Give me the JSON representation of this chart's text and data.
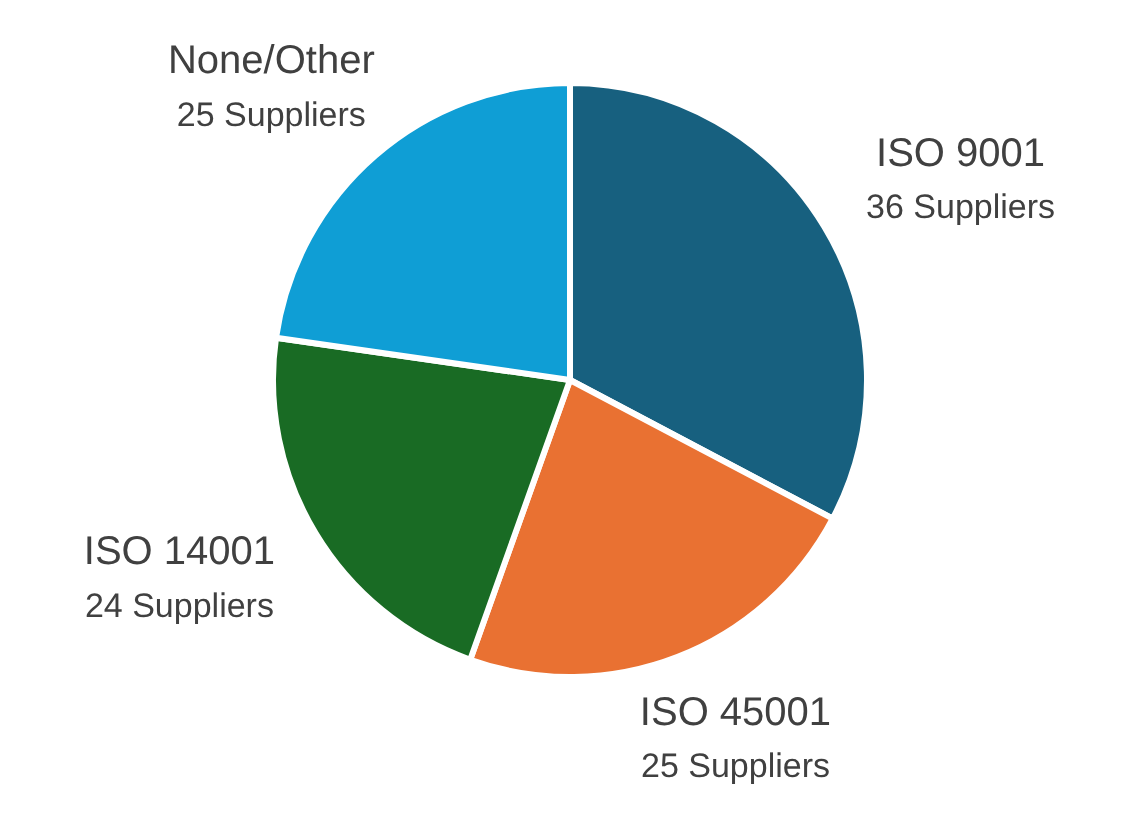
{
  "chart_data": {
    "type": "pie",
    "categories": [
      "ISO 9001",
      "ISO 45001",
      "ISO 14001",
      "None/Other"
    ],
    "values": [
      36,
      25,
      24,
      25
    ],
    "colors": [
      "#17607f",
      "#e97132",
      "#196b24",
      "#0f9ed5"
    ],
    "value_labels": [
      "36 Suppliers",
      "25 Suppliers",
      "24 Suppliers",
      "25 Suppliers"
    ],
    "legend": false
  }
}
